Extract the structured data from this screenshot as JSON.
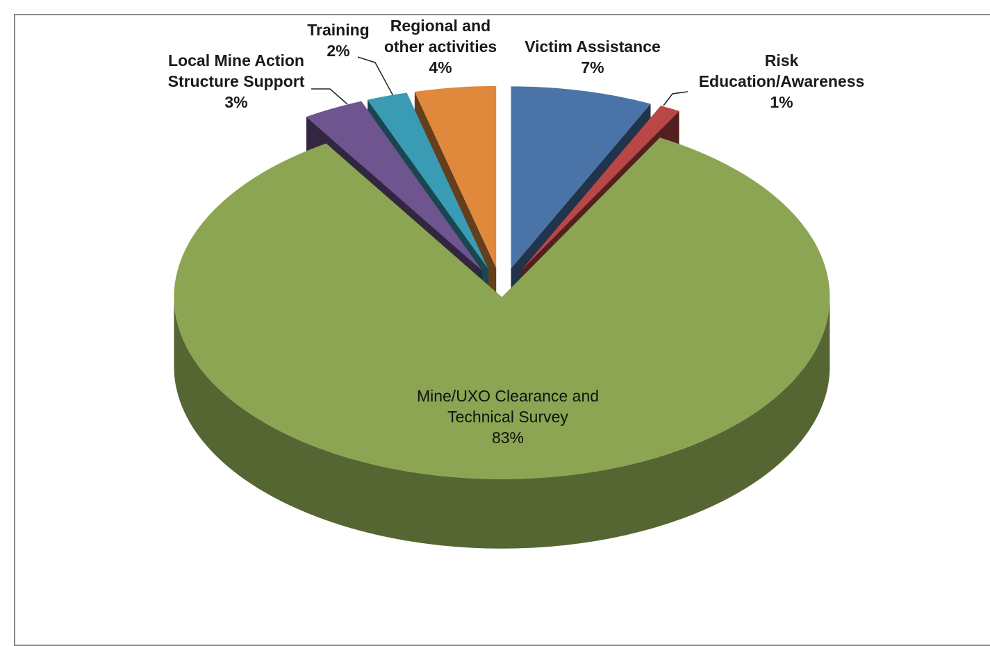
{
  "chart_data": {
    "type": "pie",
    "categories": [
      "Victim Assistance",
      "Risk Education/Awareness",
      "Mine/UXO Clearance and Technical Survey",
      "Local Mine Action Structure Support",
      "Training",
      "Regional and other activities"
    ],
    "values": [
      7,
      1,
      83,
      3,
      2,
      4
    ],
    "value_labels": [
      "7%",
      "1%",
      "83%",
      "3%",
      "2%",
      "4%"
    ],
    "colors": [
      "#4a74a8",
      "#b84745",
      "#8ba553",
      "#6e558f",
      "#3a9bb4",
      "#e0893c"
    ]
  }
}
